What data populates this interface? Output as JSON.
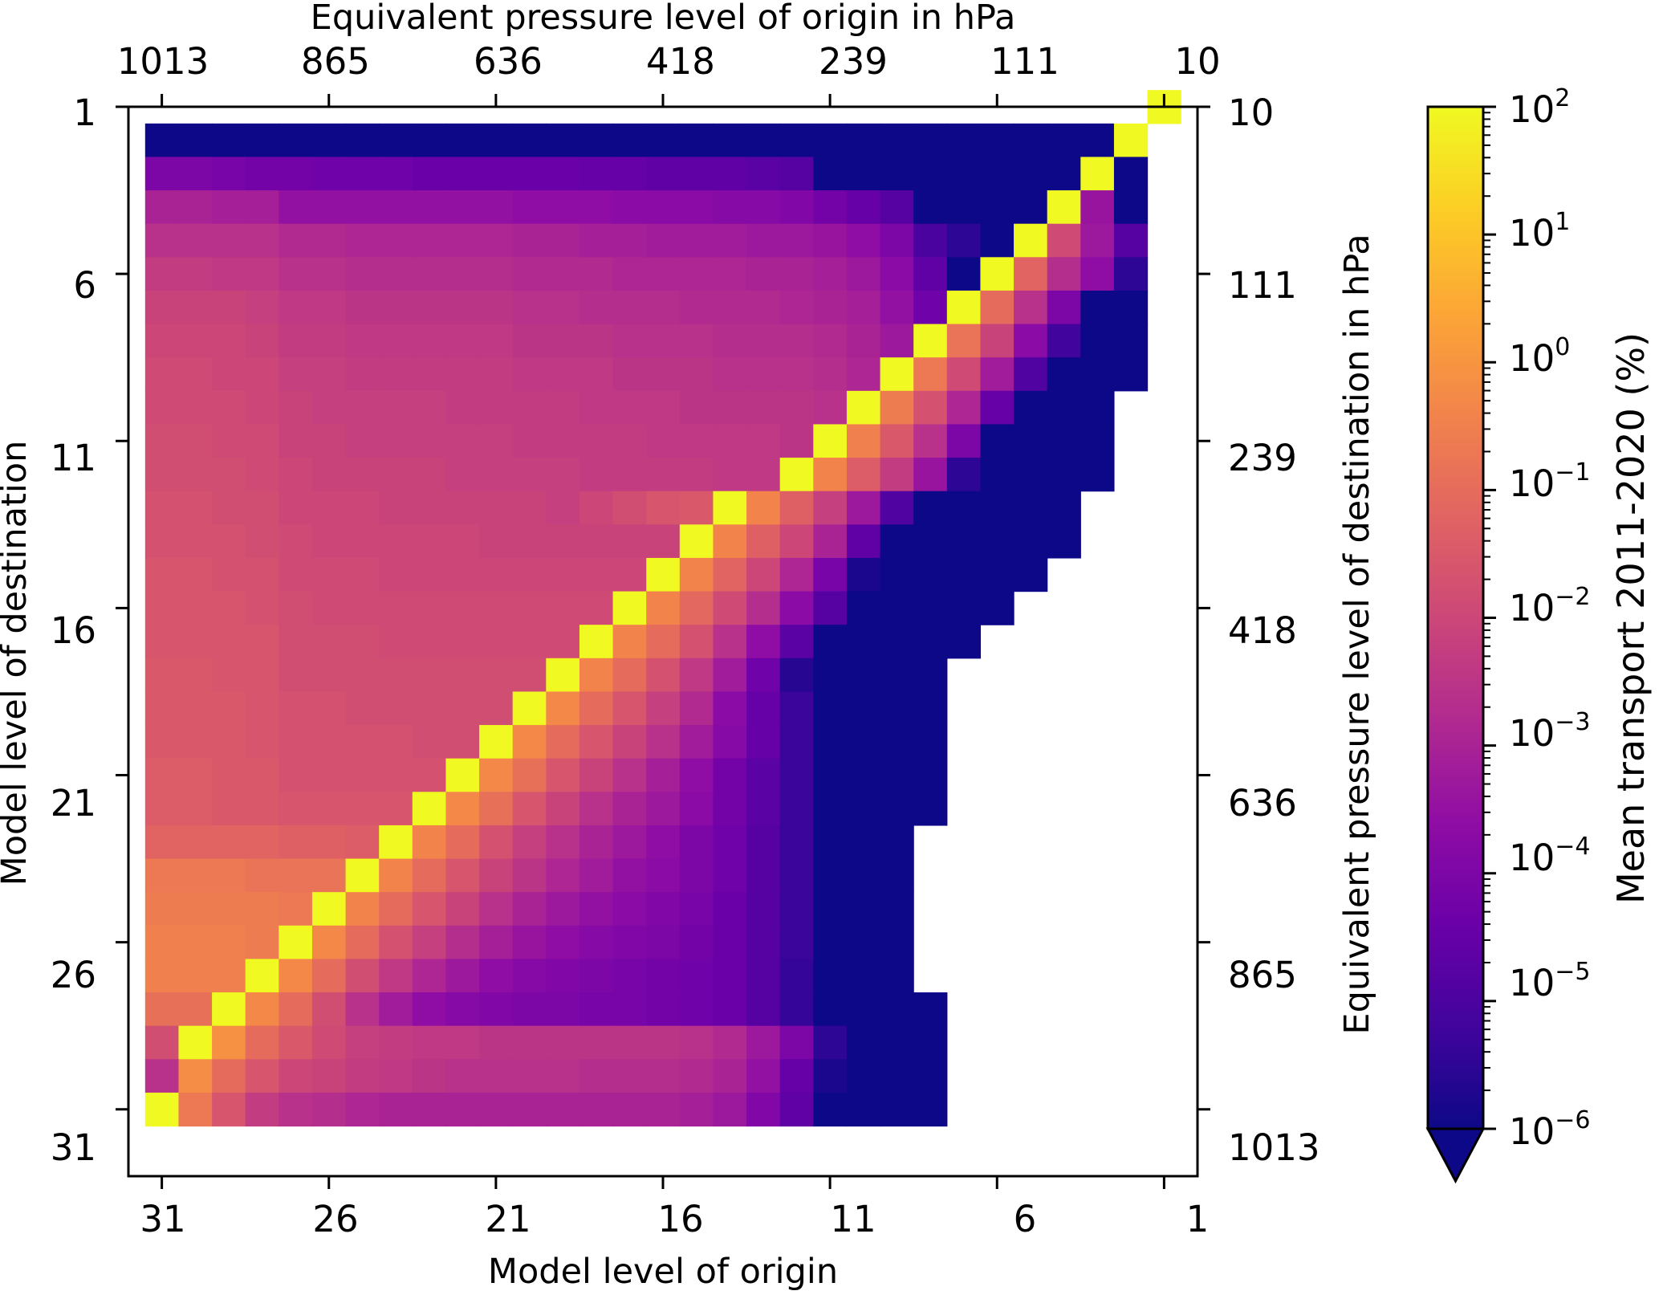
{
  "chart_data": {
    "type": "heatmap",
    "x_axis": {
      "label": "Model level of origin",
      "ticks": [
        31,
        26,
        21,
        16,
        11,
        6,
        1
      ],
      "range": [
        32,
        1
      ]
    },
    "y_axis": {
      "label": "Model level of destination",
      "ticks": [
        1,
        6,
        11,
        16,
        21,
        26,
        31
      ],
      "range": [
        1,
        32
      ]
    },
    "top_axis": {
      "label": "Equivalent pressure level of origin in hPa",
      "ticks": [
        "1013",
        "865",
        "636",
        "418",
        "239",
        "111",
        "10"
      ]
    },
    "right_axis": {
      "label": "Equivalent pressure level of destination in hPa",
      "ticks": [
        "10",
        "111",
        "239",
        "418",
        "636",
        "865",
        "1013"
      ]
    },
    "colorbar": {
      "label": "Mean transport 2011-2020 (%)",
      "scale": "log",
      "colormap": "plasma",
      "range": [
        1e-06,
        100
      ],
      "extend": "min",
      "ticks": [
        {
          "base": "10",
          "exp": "2"
        },
        {
          "base": "10",
          "exp": "1"
        },
        {
          "base": "10",
          "exp": "0"
        },
        {
          "base": "10",
          "exp": "−1"
        },
        {
          "base": "10",
          "exp": "−2"
        },
        {
          "base": "10",
          "exp": "−3"
        },
        {
          "base": "10",
          "exp": "−4"
        },
        {
          "base": "10",
          "exp": "−5"
        },
        {
          "base": "10",
          "exp": "−6"
        }
      ],
      "under_color": "#0d0887"
    },
    "values_log10": [
      [
        null,
        null,
        null,
        null,
        null,
        null,
        null,
        null,
        null,
        null,
        null,
        null,
        null,
        null,
        null,
        null,
        null,
        null,
        null,
        null,
        null,
        null,
        null,
        null,
        null,
        null,
        null,
        null,
        null,
        null,
        2.0
      ],
      [
        -6,
        -6,
        -6,
        -6,
        -6,
        -6,
        -6,
        -6,
        -6,
        -6,
        -6,
        -6,
        -6,
        -6,
        -6,
        -6,
        -6,
        -6,
        -6,
        -6,
        -6,
        -6,
        -6,
        -6,
        -6,
        -6,
        -6,
        -6,
        -6,
        2.0,
        null
      ],
      [
        -4.0,
        -4.0,
        -4.1,
        -4.2,
        -4.2,
        -4.3,
        -4.3,
        -4.3,
        -4.4,
        -4.4,
        -4.4,
        -4.4,
        -4.4,
        -4.5,
        -4.5,
        -4.6,
        -4.6,
        -4.6,
        -4.7,
        -4.8,
        -6,
        -6,
        -6,
        -6,
        -6,
        -6,
        -6,
        -6,
        2.0,
        -6,
        null
      ],
      [
        -3.0,
        -3.0,
        -3.1,
        -3.1,
        -3.5,
        -3.5,
        -3.5,
        -3.5,
        -3.5,
        -3.5,
        -3.5,
        -3.6,
        -3.6,
        -3.6,
        -3.7,
        -3.7,
        -3.7,
        -3.8,
        -3.8,
        -3.9,
        -4.2,
        -4.5,
        -4.8,
        -6,
        -6,
        -6,
        -6,
        2.0,
        -3.4,
        -6,
        null
      ],
      [
        -2.6,
        -2.6,
        -2.6,
        -2.6,
        -2.8,
        -2.8,
        -2.9,
        -2.9,
        -2.9,
        -2.9,
        -2.9,
        -3.0,
        -3.0,
        -3.1,
        -3.1,
        -3.2,
        -3.2,
        -3.2,
        -3.3,
        -3.3,
        -3.4,
        -3.6,
        -4.0,
        -5.0,
        -5.5,
        -6,
        2.0,
        -1.9,
        -3.3,
        -4.8,
        null
      ],
      [
        -2.3,
        -2.3,
        -2.4,
        -2.4,
        -2.6,
        -2.6,
        -2.7,
        -2.7,
        -2.7,
        -2.7,
        -2.7,
        -2.8,
        -2.8,
        -2.8,
        -2.9,
        -2.9,
        -2.9,
        -2.9,
        -3.0,
        -3.0,
        -3.1,
        -3.3,
        -3.7,
        -4.6,
        -6,
        2.0,
        -1.2,
        -2.7,
        -3.6,
        -5.5,
        null
      ],
      [
        -2.1,
        -2.1,
        -2.1,
        -2.2,
        -2.4,
        -2.4,
        -2.5,
        -2.5,
        -2.5,
        -2.5,
        -2.5,
        -2.6,
        -2.6,
        -2.7,
        -2.7,
        -2.7,
        -2.8,
        -2.8,
        -2.8,
        -2.9,
        -3.0,
        -3.1,
        -3.5,
        -4.3,
        2.0,
        -1.0,
        -2.6,
        -4.0,
        -6,
        -6,
        null
      ],
      [
        -2.0,
        -2.0,
        -2.0,
        -2.1,
        -2.3,
        -2.3,
        -2.4,
        -2.4,
        -2.4,
        -2.4,
        -2.4,
        -2.5,
        -2.5,
        -2.5,
        -2.6,
        -2.6,
        -2.6,
        -2.7,
        -2.7,
        -2.7,
        -2.8,
        -3.0,
        -3.3,
        2.0,
        -0.8,
        -2.1,
        -3.7,
        -5.2,
        -6,
        -6,
        null
      ],
      [
        -1.9,
        -1.9,
        -2.0,
        -2.0,
        -2.2,
        -2.2,
        -2.3,
        -2.3,
        -2.3,
        -2.3,
        -2.3,
        -2.4,
        -2.4,
        -2.4,
        -2.5,
        -2.5,
        -2.5,
        -2.6,
        -2.6,
        -2.6,
        -2.7,
        -2.9,
        2.0,
        -0.7,
        -1.9,
        -3.2,
        -4.9,
        -6,
        -6,
        -6,
        null
      ],
      [
        -1.9,
        -1.9,
        -1.9,
        -2.0,
        -2.1,
        -2.2,
        -2.2,
        -2.2,
        -2.2,
        -2.3,
        -2.3,
        -2.3,
        -2.3,
        -2.4,
        -2.4,
        -2.4,
        -2.5,
        -2.5,
        -2.5,
        -2.5,
        -2.6,
        2.0,
        -0.6,
        -1.7,
        -2.9,
        -4.5,
        -6,
        -6,
        -6,
        null,
        null
      ],
      [
        -1.8,
        -1.8,
        -1.9,
        -1.9,
        -2.1,
        -2.1,
        -2.2,
        -2.2,
        -2.2,
        -2.2,
        -2.2,
        -2.3,
        -2.3,
        -2.3,
        -2.3,
        -2.4,
        -2.4,
        -2.4,
        -2.4,
        -2.5,
        2.0,
        -0.5,
        -1.5,
        -2.6,
        -4.0,
        -6,
        -6,
        -6,
        -6,
        null,
        null
      ],
      [
        -1.8,
        -1.8,
        -1.8,
        -1.9,
        -2.0,
        -2.1,
        -2.1,
        -2.1,
        -2.1,
        -2.2,
        -2.2,
        -2.2,
        -2.2,
        -2.3,
        -2.3,
        -2.3,
        -2.3,
        -2.4,
        -2.4,
        2.0,
        -0.4,
        -1.4,
        -2.3,
        -3.4,
        -5.5,
        -6,
        -6,
        -6,
        -6,
        null,
        null
      ],
      [
        -1.7,
        -1.7,
        -1.8,
        -1.8,
        -2.0,
        -2.0,
        -2.0,
        -2.1,
        -2.1,
        -2.1,
        -2.1,
        -2.1,
        -2.2,
        -2.0,
        -1.8,
        -1.6,
        -1.5,
        2.0,
        -0.4,
        -1.3,
        -2.2,
        -3.3,
        -4.9,
        -6,
        -6,
        -6,
        -6,
        -6,
        null,
        null,
        null
      ],
      [
        -1.7,
        -1.7,
        -1.7,
        -1.8,
        -1.9,
        -2.0,
        -2.0,
        -2.0,
        -2.0,
        -2.0,
        -2.1,
        -2.1,
        -2.1,
        -2.1,
        -2.1,
        -2.1,
        2.0,
        -0.4,
        -1.3,
        -2.0,
        -3.0,
        -4.6,
        -6,
        -6,
        -6,
        -6,
        -6,
        -6,
        null,
        null,
        null
      ],
      [
        -1.6,
        -1.6,
        -1.7,
        -1.7,
        -1.9,
        -1.9,
        -1.9,
        -2.0,
        -2.0,
        -2.0,
        -2.0,
        -2.0,
        -2.0,
        -2.0,
        -2.0,
        2.0,
        -0.4,
        -1.2,
        -2.0,
        -2.9,
        -4.1,
        -5.8,
        -6,
        -6,
        -6,
        -6,
        -6,
        null,
        null,
        null,
        null
      ],
      [
        -1.6,
        -1.6,
        -1.6,
        -1.7,
        -1.8,
        -1.9,
        -1.9,
        -1.9,
        -1.9,
        -1.9,
        -1.9,
        -1.9,
        -1.9,
        -1.9,
        2.0,
        -0.4,
        -1.1,
        -1.9,
        -2.7,
        -3.7,
        -4.8,
        -6,
        -6,
        -6,
        -6,
        -6,
        null,
        null,
        null,
        null,
        null
      ],
      [
        -1.6,
        -1.6,
        -1.6,
        -1.6,
        -1.8,
        -1.8,
        -1.8,
        -1.9,
        -1.9,
        -1.9,
        -1.9,
        -1.9,
        -1.9,
        2.0,
        -0.4,
        -1.0,
        -1.7,
        -2.6,
        -3.6,
        -4.7,
        -6,
        -6,
        -6,
        -6,
        -6,
        null,
        null,
        null,
        null,
        null,
        null
      ],
      [
        -1.5,
        -1.5,
        -1.6,
        -1.6,
        -1.8,
        -1.8,
        -1.8,
        -1.8,
        -1.8,
        -1.8,
        -1.8,
        -1.8,
        2.0,
        -0.4,
        -1.0,
        -1.7,
        -2.4,
        -3.2,
        -4.3,
        -5.6,
        -6,
        -6,
        -6,
        -6,
        null,
        null,
        null,
        null,
        null,
        null,
        null
      ],
      [
        -1.5,
        -1.5,
        -1.5,
        -1.6,
        -1.7,
        -1.7,
        -1.8,
        -1.8,
        -1.8,
        -1.8,
        -1.8,
        2.0,
        -0.3,
        -1.0,
        -1.6,
        -2.2,
        -2.8,
        -3.7,
        -4.5,
        -5.3,
        -6,
        -6,
        -6,
        -6,
        null,
        null,
        null,
        null,
        null,
        null,
        null
      ],
      [
        -1.5,
        -1.5,
        -1.5,
        -1.6,
        -1.7,
        -1.7,
        -1.7,
        -1.7,
        -1.8,
        -1.8,
        2.0,
        -0.3,
        -1.0,
        -1.6,
        -2.1,
        -2.6,
        -3.2,
        -3.8,
        -4.5,
        -5.3,
        -6,
        -6,
        -6,
        -6,
        null,
        null,
        null,
        null,
        null,
        null,
        null
      ],
      [
        -1.4,
        -1.4,
        -1.5,
        -1.5,
        -1.7,
        -1.7,
        -1.7,
        -1.7,
        -1.7,
        2.0,
        -0.3,
        -0.9,
        -1.6,
        -2.1,
        -2.6,
        -3.1,
        -3.6,
        -4.2,
        -4.7,
        -5.3,
        -6,
        -6,
        -6,
        -6,
        null,
        null,
        null,
        null,
        null,
        null,
        null
      ],
      [
        -1.4,
        -1.4,
        -1.5,
        -1.5,
        -1.6,
        -1.6,
        -1.6,
        -1.6,
        2.0,
        -0.3,
        -0.9,
        -1.6,
        -2.1,
        -2.6,
        -3.0,
        -3.3,
        -3.7,
        -4.2,
        -4.7,
        -5.3,
        -6,
        -6,
        -6,
        -6,
        null,
        null,
        null,
        null,
        null,
        null,
        null
      ],
      [
        -1.2,
        -1.2,
        -1.2,
        -1.2,
        -1.3,
        -1.3,
        -1.4,
        2.0,
        -0.4,
        -1.0,
        -1.7,
        -2.2,
        -2.6,
        -3.0,
        -3.3,
        -3.6,
        -4.0,
        -4.3,
        -4.8,
        -5.3,
        -6,
        -6,
        -6,
        null,
        null,
        null,
        null,
        null,
        null,
        null,
        null
      ],
      [
        -0.7,
        -0.7,
        -0.7,
        -0.8,
        -0.8,
        -0.8,
        2.0,
        -0.4,
        -1.0,
        -1.6,
        -2.1,
        -2.5,
        -2.9,
        -3.2,
        -3.5,
        -3.7,
        -4.0,
        -4.3,
        -4.8,
        -5.3,
        -6,
        -6,
        -6,
        null,
        null,
        null,
        null,
        null,
        null,
        null,
        null
      ],
      [
        -0.6,
        -0.6,
        -0.6,
        -0.6,
        -0.7,
        2.0,
        -0.4,
        -1.0,
        -1.6,
        -2.1,
        -2.6,
        -3.0,
        -3.3,
        -3.5,
        -3.7,
        -3.9,
        -4.1,
        -4.4,
        -4.8,
        -5.3,
        -6,
        -6,
        -6,
        null,
        null,
        null,
        null,
        null,
        null,
        null,
        null
      ],
      [
        -0.5,
        -0.5,
        -0.5,
        -0.6,
        2.0,
        -0.3,
        -1.0,
        -1.7,
        -2.2,
        -2.7,
        -3.1,
        -3.4,
        -3.6,
        -3.8,
        -3.9,
        -4.0,
        -4.2,
        -4.4,
        -4.8,
        -5.3,
        -6,
        -6,
        -6,
        null,
        null,
        null,
        null,
        null,
        null,
        null,
        null
      ],
      [
        -0.5,
        -0.5,
        -0.5,
        2.0,
        -0.3,
        -1.0,
        -1.8,
        -2.4,
        -2.9,
        -3.3,
        -3.6,
        -3.8,
        -3.9,
        -4.0,
        -4.1,
        -4.2,
        -4.3,
        -4.4,
        -4.8,
        -5.4,
        -6,
        -6,
        -6,
        null,
        null,
        null,
        null,
        null,
        null,
        null,
        null
      ],
      [
        -0.9,
        -0.9,
        2.0,
        -0.3,
        -1.0,
        -1.8,
        -2.6,
        -3.2,
        -3.6,
        -3.8,
        -3.9,
        -4.0,
        -4.0,
        -4.1,
        -4.1,
        -4.2,
        -4.3,
        -4.4,
        -4.8,
        -5.4,
        -6,
        -6,
        -6,
        -6,
        null,
        null,
        null,
        null,
        null,
        null,
        null
      ],
      [
        -1.8,
        2.0,
        -0.1,
        -1.0,
        -1.5,
        -1.9,
        -2.2,
        -2.3,
        -2.4,
        -2.4,
        -2.5,
        -2.5,
        -2.5,
        -2.5,
        -2.5,
        -2.5,
        -2.6,
        -2.8,
        -3.3,
        -4.0,
        -5.5,
        -6,
        -6,
        -6,
        null,
        null,
        null,
        null,
        null,
        null,
        null
      ],
      [
        -2.6,
        -0.2,
        -1.0,
        -1.6,
        -2.0,
        -2.1,
        -2.3,
        -2.4,
        -2.5,
        -2.6,
        -2.6,
        -2.6,
        -2.6,
        -2.7,
        -2.7,
        -2.7,
        -2.8,
        -3.0,
        -3.5,
        -4.5,
        -5.8,
        -6,
        -6,
        -6,
        null,
        null,
        null,
        null,
        null,
        null,
        null
      ],
      [
        2.0,
        -0.7,
        -1.6,
        -2.3,
        -2.6,
        -2.7,
        -2.9,
        -3.0,
        -3.0,
        -3.0,
        -3.0,
        -3.0,
        -3.0,
        -3.0,
        -3.0,
        -3.0,
        -3.1,
        -3.3,
        -3.9,
        -4.6,
        -6,
        -6,
        -6,
        -6,
        null,
        null,
        null,
        null,
        null,
        null,
        null
      ]
    ]
  }
}
